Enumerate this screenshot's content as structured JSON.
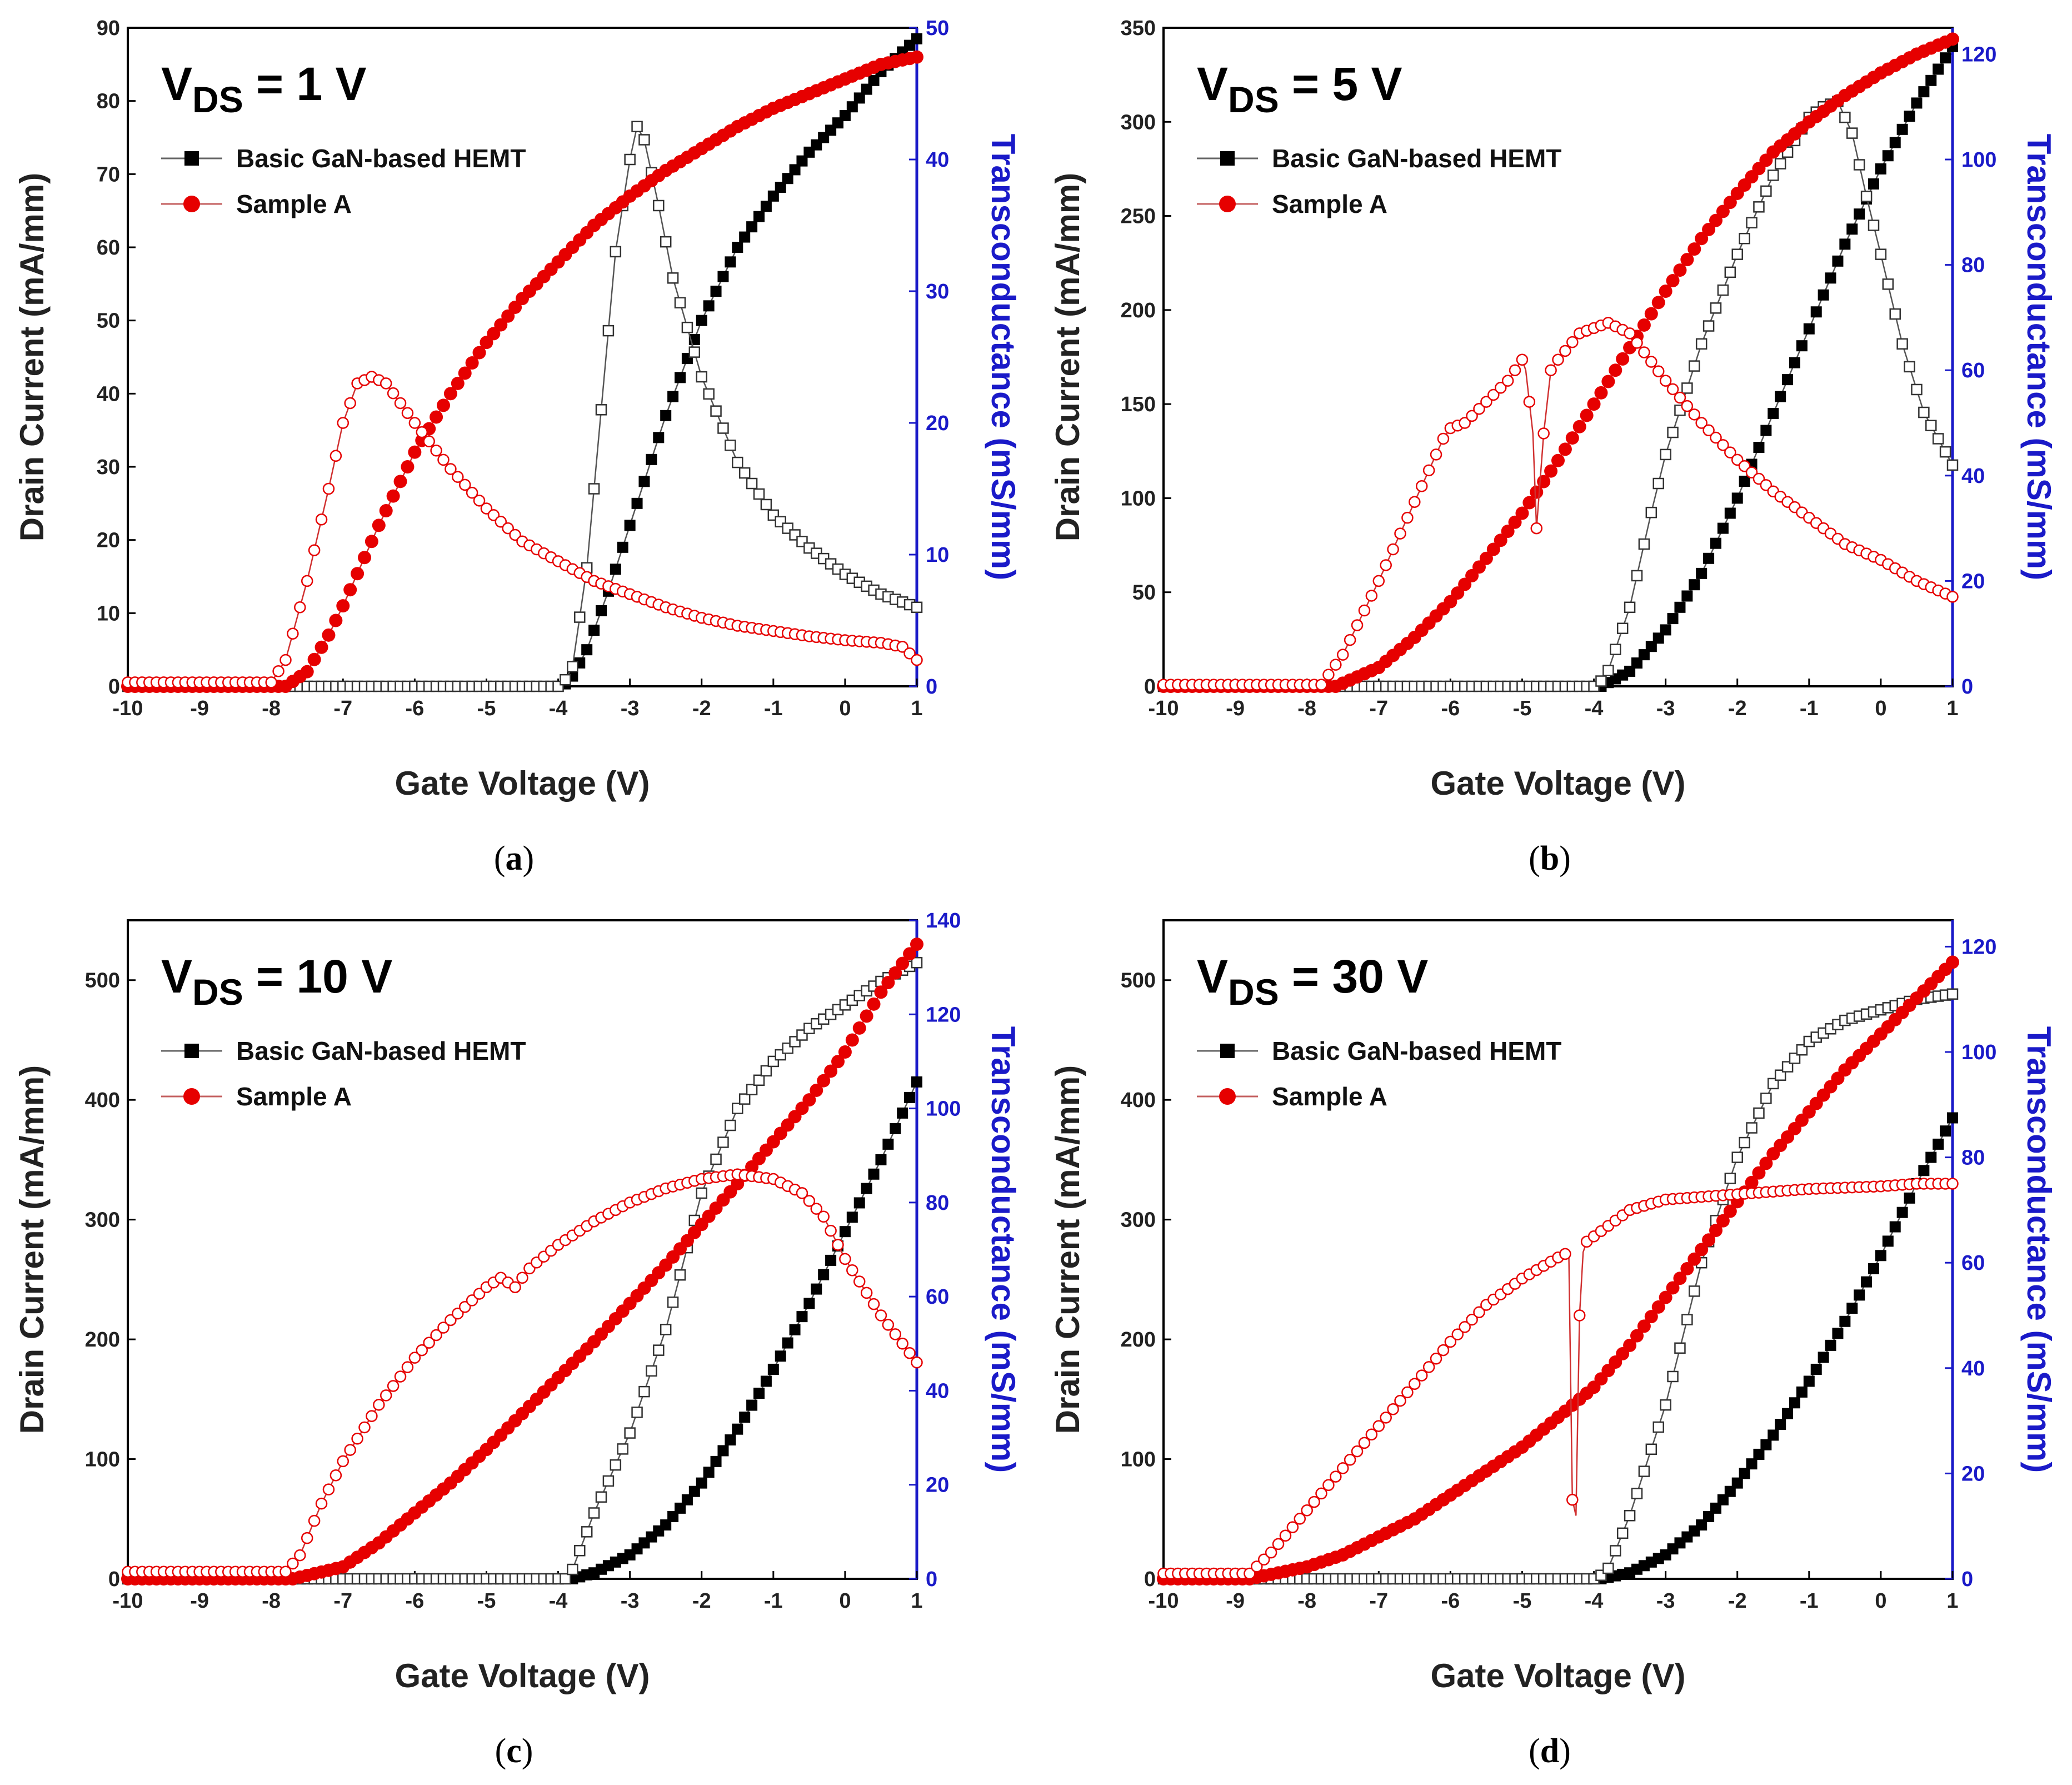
{
  "colors": {
    "basic": "#000000",
    "sampleA": "#e60000",
    "transconductance_axis": "#1a1ac8"
  },
  "chart_data": [
    {
      "type": "line",
      "caption": {
        "open": "(",
        "letter": "a",
        "close": ")"
      },
      "annotation": {
        "prefix": "V",
        "sub": "DS",
        "suffix": " = 1 V"
      },
      "xlabel": "Gate Voltage (V)",
      "ylabel": "Drain Current (mA/mm)",
      "y2label": "Transconductance (mS/mm)",
      "xlim": [
        -10,
        1
      ],
      "ylim": [
        0,
        90
      ],
      "y2lim": [
        0,
        50
      ],
      "xticks": [
        -10,
        -9,
        -8,
        -7,
        -6,
        -5,
        -4,
        -3,
        -2,
        -1,
        0,
        1
      ],
      "yticks": [
        0,
        10,
        20,
        30,
        40,
        50,
        60,
        70,
        80,
        90
      ],
      "y2ticks": [
        0,
        10,
        20,
        30,
        40,
        50
      ],
      "legend": [
        "Basic GaN-based HEMT",
        "Sample A"
      ],
      "series": [
        {
          "name": "Basic GaN-based HEMT",
          "quantity": "drain current",
          "axis": "left",
          "color": "#000000",
          "filled": true,
          "x": [
            -10,
            -4.0,
            -3.85,
            -3.6,
            -3.3,
            -3.0,
            -2.5,
            -2.0,
            -1.5,
            -1.0,
            -0.5,
            0,
            0.5,
            1.0
          ],
          "y": [
            0,
            0,
            0.5,
            5,
            13,
            22,
            37,
            50,
            60,
            67,
            73,
            78,
            84,
            88.5
          ]
        },
        {
          "name": "Basic GaN-based HEMT",
          "quantity": "transconductance",
          "axis": "right",
          "color": "#000000",
          "filled": false,
          "x": [
            -10,
            -3.95,
            -3.8,
            -3.6,
            -3.4,
            -3.2,
            -3.0,
            -2.9,
            -2.8,
            -2.6,
            -2.4,
            -2.0,
            -1.5,
            -1.0,
            -0.5,
            0,
            0.5,
            1.0
          ],
          "y": [
            0,
            0,
            1.5,
            9,
            21,
            33,
            40,
            42.5,
            41.5,
            36.5,
            31,
            23.5,
            17,
            13,
            10.5,
            8.5,
            7,
            6
          ]
        },
        {
          "name": "Sample A",
          "quantity": "drain current",
          "axis": "left",
          "color": "#e60000",
          "filled": true,
          "x": [
            -10,
            -7.8,
            -7.5,
            -7.2,
            -7.0,
            -6.5,
            -6.0,
            -5.5,
            -5.0,
            -4.5,
            -4.0,
            -3.5,
            -3.0,
            -2.5,
            -2.0,
            -1.5,
            -1.0,
            -0.5,
            0,
            0.5,
            1.0
          ],
          "y": [
            0,
            0,
            2,
            7,
            11,
            22,
            32,
            40,
            47,
            53,
            58,
            63,
            67,
            70.5,
            73.5,
            76.5,
            79,
            81,
            83,
            85,
            86
          ]
        },
        {
          "name": "Sample A",
          "quantity": "transconductance",
          "axis": "right",
          "color": "#e60000",
          "filled": false,
          "x": [
            -10,
            -8.0,
            -7.8,
            -7.5,
            -7.2,
            -7.0,
            -6.8,
            -6.6,
            -6.4,
            -6.0,
            -5.5,
            -5.0,
            -4.5,
            -4.0,
            -3.5,
            -3.0,
            -2.5,
            -2.0,
            -1.5,
            -1.0,
            -0.5,
            0,
            0.5,
            0.8,
            1.0
          ],
          "y": [
            0.3,
            0.3,
            2,
            8,
            15,
            20,
            23,
            23.5,
            23,
            20,
            16.5,
            13.5,
            11,
            9.5,
            8,
            7,
            6,
            5.2,
            4.6,
            4.2,
            3.8,
            3.5,
            3.3,
            3,
            2
          ]
        }
      ]
    },
    {
      "type": "line",
      "caption": {
        "open": "(",
        "letter": "b",
        "close": ")"
      },
      "annotation": {
        "prefix": "V",
        "sub": "DS",
        "suffix": " = 5 V"
      },
      "xlabel": "Gate Voltage (V)",
      "ylabel": "Drain Current (mA/mm)",
      "y2label": "Transconductance (mS/mm)",
      "xlim": [
        -10,
        1
      ],
      "ylim": [
        0,
        350
      ],
      "y2lim": [
        0,
        125
      ],
      "xticks": [
        -10,
        -9,
        -8,
        -7,
        -6,
        -5,
        -4,
        -3,
        -2,
        -1,
        0,
        1
      ],
      "yticks": [
        0,
        50,
        100,
        150,
        200,
        250,
        300,
        350
      ],
      "y2ticks": [
        0,
        20,
        40,
        60,
        80,
        100,
        120
      ],
      "legend": [
        "Basic GaN-based HEMT",
        "Sample A"
      ],
      "series": [
        {
          "name": "Basic GaN-based HEMT",
          "quantity": "drain current",
          "axis": "left",
          "color": "#000000",
          "filled": true,
          "x": [
            -10,
            -3.9,
            -3.5,
            -3.0,
            -2.5,
            -2.0,
            -1.5,
            -1.0,
            -0.5,
            0,
            0.5,
            1.0
          ],
          "y": [
            0,
            0,
            8,
            30,
            60,
            100,
            145,
            190,
            235,
            275,
            310,
            340
          ]
        },
        {
          "name": "Basic GaN-based HEMT",
          "quantity": "transconductance",
          "axis": "right",
          "color": "#000000",
          "filled": false,
          "x": [
            -10,
            -3.95,
            -3.8,
            -3.5,
            -3.2,
            -3.0,
            -2.5,
            -2.0,
            -1.5,
            -1.0,
            -0.8,
            -0.6,
            -0.4,
            -0.2,
            0,
            0.3,
            0.6,
            1.0
          ],
          "y": [
            0,
            0,
            3,
            15,
            33,
            44,
            65,
            82,
            97,
            108,
            110,
            111,
            105,
            93,
            82,
            65,
            52,
            42
          ]
        },
        {
          "name": "Sample A",
          "quantity": "drain current",
          "axis": "left",
          "color": "#e60000",
          "filled": true,
          "x": [
            -10,
            -7.6,
            -7.0,
            -6.5,
            -6.0,
            -5.5,
            -5.0,
            -4.5,
            -4.0,
            -3.5,
            -3.0,
            -2.5,
            -2.0,
            -1.5,
            -1.0,
            -0.5,
            0,
            0.5,
            1.0
          ],
          "y": [
            0,
            0,
            10,
            26,
            45,
            68,
            92,
            120,
            150,
            180,
            210,
            238,
            262,
            284,
            300,
            314,
            326,
            336,
            344
          ]
        },
        {
          "name": "Sample A",
          "quantity": "transconductance",
          "axis": "right",
          "color": "#e60000",
          "filled": false,
          "x": [
            -10,
            -7.8,
            -7.5,
            -7.0,
            -6.5,
            -6.1,
            -6.0,
            -5.8,
            -5.5,
            -5.2,
            -5.0,
            -4.95,
            -4.85,
            -4.8,
            -4.7,
            -4.6,
            -4.5,
            -4.2,
            -3.8,
            -3.5,
            -3.0,
            -2.5,
            -2.0,
            -1.5,
            -1.0,
            -0.5,
            0,
            0.5,
            1.0
          ],
          "y": [
            0.3,
            0.3,
            6,
            20,
            35,
            47,
            49,
            50,
            54,
            58,
            62,
            60,
            48,
            30,
            48,
            60,
            62,
            67,
            69,
            67,
            58,
            50,
            43,
            37,
            32,
            27,
            24,
            20,
            17
          ]
        }
      ]
    },
    {
      "type": "line",
      "caption": {
        "open": "(",
        "letter": "c",
        "close": ")"
      },
      "annotation": {
        "prefix": "V",
        "sub": "DS",
        "suffix": " = 10 V"
      },
      "xlabel": "Gate Voltage (V)",
      "ylabel": "Drain Current (mA/mm)",
      "y2label": "Transconductance (mS/mm)",
      "xlim": [
        -10,
        1
      ],
      "ylim": [
        0,
        550
      ],
      "y2lim": [
        0,
        140
      ],
      "xticks": [
        -10,
        -9,
        -8,
        -7,
        -6,
        -5,
        -4,
        -3,
        -2,
        -1,
        0,
        1
      ],
      "yticks": [
        0,
        100,
        200,
        300,
        400,
        500
      ],
      "y2ticks": [
        0,
        20,
        40,
        60,
        80,
        100,
        120,
        140
      ],
      "legend": [
        "Basic GaN-based HEMT",
        "Sample A"
      ],
      "series": [
        {
          "name": "Basic GaN-based HEMT",
          "quantity": "drain current",
          "axis": "left",
          "color": "#000000",
          "filled": true,
          "x": [
            -10,
            -3.8,
            -3.5,
            -3.0,
            -2.5,
            -2.0,
            -1.5,
            -1.0,
            -0.5,
            0,
            0.5,
            1.0
          ],
          "y": [
            0,
            0,
            5,
            20,
            45,
            80,
            125,
            175,
            230,
            290,
            350,
            415
          ]
        },
        {
          "name": "Basic GaN-based HEMT",
          "quantity": "transconductance",
          "axis": "right",
          "color": "#000000",
          "filled": false,
          "x": [
            -10,
            -3.9,
            -3.8,
            -3.5,
            -3.0,
            -2.5,
            -2.0,
            -1.5,
            -1.0,
            -0.5,
            0,
            0.5,
            1.0
          ],
          "y": [
            0,
            0,
            2,
            14,
            31,
            53,
            82,
            100,
            110,
            117,
            122,
            127,
            131
          ]
        },
        {
          "name": "Sample A",
          "quantity": "drain current",
          "axis": "left",
          "color": "#e60000",
          "filled": true,
          "x": [
            -10,
            -7.7,
            -7.0,
            -6.5,
            -6.0,
            -5.5,
            -5.0,
            -4.5,
            -4.0,
            -3.5,
            -3.0,
            -2.5,
            -2.0,
            -1.5,
            -1.0,
            -0.5,
            0,
            0.5,
            1.0
          ],
          "y": [
            0,
            0,
            10,
            30,
            55,
            80,
            108,
            138,
            168,
            198,
            230,
            262,
            296,
            330,
            365,
            400,
            440,
            490,
            530
          ]
        },
        {
          "name": "Sample A",
          "quantity": "transconductance",
          "axis": "right",
          "color": "#e60000",
          "filled": false,
          "x": [
            -10,
            -7.8,
            -7.6,
            -7.3,
            -7.0,
            -6.5,
            -6.0,
            -5.5,
            -5.0,
            -4.8,
            -4.6,
            -4.4,
            -4.0,
            -3.5,
            -3.0,
            -2.5,
            -2.0,
            -1.5,
            -1.0,
            -0.6,
            -0.3,
            0,
            0.5,
            1.0
          ],
          "y": [
            1.5,
            1.5,
            5,
            16,
            25,
            37,
            47,
            55,
            62,
            64,
            62,
            66,
            71,
            76,
            80,
            83,
            85,
            86,
            85,
            82,
            77,
            68,
            56,
            46
          ]
        }
      ]
    },
    {
      "type": "line",
      "caption": {
        "open": "(",
        "letter": "d",
        "close": ")"
      },
      "annotation": {
        "prefix": "V",
        "sub": "DS",
        "suffix": " = 30 V"
      },
      "xlabel": "Gate Voltage (V)",
      "ylabel": "Drain Current (mA/mm)",
      "y2label": "Transconductance (mS/mm)",
      "xlim": [
        -10,
        1
      ],
      "ylim": [
        0,
        550
      ],
      "y2lim": [
        0,
        125
      ],
      "xticks": [
        -10,
        -9,
        -8,
        -7,
        -6,
        -5,
        -4,
        -3,
        -2,
        -1,
        0,
        1
      ],
      "yticks": [
        0,
        100,
        200,
        300,
        400,
        500
      ],
      "y2ticks": [
        0,
        20,
        40,
        60,
        80,
        100,
        120
      ],
      "legend": [
        "Basic GaN-based HEMT",
        "Sample A"
      ],
      "series": [
        {
          "name": "Basic GaN-based HEMT",
          "quantity": "drain current",
          "axis": "left",
          "color": "#000000",
          "filled": true,
          "x": [
            -10,
            -3.9,
            -3.5,
            -3.0,
            -2.5,
            -2.0,
            -1.5,
            -1.0,
            -0.5,
            0,
            0.5,
            1.0
          ],
          "y": [
            0,
            0,
            5,
            20,
            45,
            80,
            120,
            165,
            215,
            270,
            330,
            385
          ]
        },
        {
          "name": "Basic GaN-based HEMT",
          "quantity": "transconductance",
          "axis": "right",
          "color": "#000000",
          "filled": false,
          "x": [
            -10,
            -3.95,
            -3.8,
            -3.5,
            -3.0,
            -2.5,
            -2.0,
            -1.5,
            -1.0,
            -0.5,
            0,
            0.5,
            1.0
          ],
          "y": [
            0,
            0,
            2,
            12,
            33,
            60,
            80,
            94,
            102,
            106,
            108,
            110,
            111
          ]
        },
        {
          "name": "Sample A",
          "quantity": "drain current",
          "axis": "left",
          "color": "#e60000",
          "filled": true,
          "x": [
            -10,
            -8.8,
            -8.0,
            -7.5,
            -7.0,
            -6.5,
            -6.0,
            -5.5,
            -5.0,
            -4.5,
            -4.0,
            -3.5,
            -3.0,
            -2.5,
            -2.0,
            -1.5,
            -1.0,
            -0.5,
            0,
            0.5,
            1.0
          ],
          "y": [
            0,
            0,
            10,
            20,
            35,
            50,
            70,
            90,
            110,
            135,
            160,
            195,
            235,
            275,
            315,
            355,
            390,
            425,
            455,
            485,
            515
          ]
        },
        {
          "name": "Sample A",
          "quantity": "transconductance",
          "axis": "right",
          "color": "#e60000",
          "filled": false,
          "x": [
            -10,
            -8.8,
            -8.5,
            -8.0,
            -7.5,
            -7.0,
            -6.5,
            -6.0,
            -5.5,
            -5.0,
            -4.5,
            -4.35,
            -4.3,
            -4.25,
            -4.2,
            -4.15,
            -4.1,
            -3.5,
            -3.0,
            -2.0,
            -1.0,
            0,
            0.5,
            1.0
          ],
          "y": [
            1,
            1,
            5,
            13,
            21,
            29,
            37,
            45,
            52,
            57,
            61,
            62,
            15,
            12,
            50,
            62,
            64,
            70,
            72,
            73,
            74,
            74.5,
            75,
            75
          ]
        }
      ]
    }
  ]
}
